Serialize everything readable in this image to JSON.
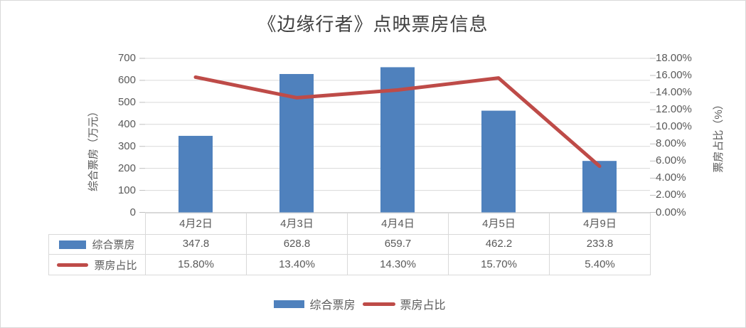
{
  "title": "《边缘行者》点映票房信息",
  "colors": {
    "bar": "#4F81BD",
    "line": "#BE4B48",
    "text": "#595959",
    "title_text": "#404040",
    "grid": "#D9D9D9",
    "tick": "#BFBFBF",
    "table_border": "#D9D9D9",
    "background": "#FFFFFF"
  },
  "chart_data": {
    "type": "combo",
    "title": "《边缘行者》点映票房信息",
    "categories": [
      "4月2日",
      "4月3日",
      "4月4日",
      "4月5日",
      "4月9日"
    ],
    "series": [
      {
        "name": "综合票房",
        "type": "bar",
        "axis": "left",
        "color": "#4F81BD",
        "values": [
          347.8,
          628.8,
          659.7,
          462.2,
          233.8
        ],
        "value_labels": [
          "347.8",
          "628.8",
          "659.7",
          "462.2",
          "233.8"
        ]
      },
      {
        "name": "票房占比",
        "type": "line",
        "axis": "right",
        "color": "#BE4B48",
        "values": [
          15.8,
          13.4,
          14.3,
          15.7,
          5.4
        ],
        "value_labels": [
          "15.80%",
          "13.40%",
          "14.30%",
          "15.70%",
          "5.40%"
        ]
      }
    ],
    "y_left": {
      "label": "综合票房（万元）",
      "min": 0,
      "max": 700,
      "tick_step": 100,
      "ticks": [
        "700",
        "600",
        "500",
        "400",
        "300",
        "200",
        "100",
        "0"
      ]
    },
    "y_right": {
      "label": "票房占比（%）",
      "min": 0,
      "max": 18,
      "tick_step": 2,
      "ticks": [
        "18.00%",
        "16.00%",
        "14.00%",
        "12.00%",
        "10.00%",
        "8.00%",
        "6.00%",
        "4.00%",
        "2.00%",
        "0.00%"
      ]
    },
    "grid": true,
    "legend_position": "bottom",
    "data_table": true
  },
  "legend": {
    "items": [
      {
        "label": "综合票房",
        "marker": "bar-swatch"
      },
      {
        "label": "票房占比",
        "marker": "line-swatch"
      }
    ]
  }
}
